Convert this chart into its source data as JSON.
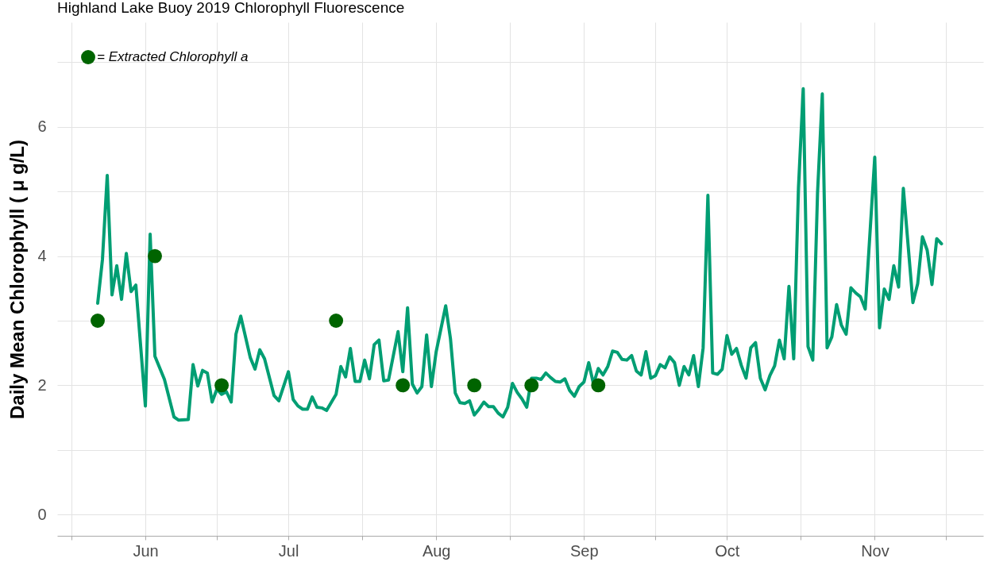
{
  "chart_data": {
    "type": "line",
    "title": "Highland Lake Buoy 2019 Chlorophyll Fluorescence",
    "ylabel": "Daily Mean Chlorophyll ( μ g/L)",
    "xlim": [
      "2019-05-13T12:00",
      "2019-11-23T18:00"
    ],
    "xticks": [
      {
        "value": "2019-05-16T12:00",
        "label": null
      },
      {
        "value": "2019-06-01",
        "label": "Jun"
      },
      {
        "value": "2019-06-16",
        "label": null
      },
      {
        "value": "2019-07-01",
        "label": "Jul"
      },
      {
        "value": "2019-07-16T12:00",
        "label": null
      },
      {
        "value": "2019-08-01",
        "label": "Aug"
      },
      {
        "value": "2019-08-16T12:00",
        "label": null
      },
      {
        "value": "2019-09-01",
        "label": "Sep"
      },
      {
        "value": "2019-09-16",
        "label": null
      },
      {
        "value": "2019-10-01",
        "label": "Oct"
      },
      {
        "value": "2019-10-16T12:00",
        "label": null
      },
      {
        "value": "2019-11-01",
        "label": "Nov"
      },
      {
        "value": "2019-11-16",
        "label": null
      }
    ],
    "ylim": [
      -0.33,
      7.62
    ],
    "yticks": [
      0,
      {
        "value": 1,
        "label": null
      },
      2,
      {
        "value": 3,
        "label": null
      },
      4,
      {
        "value": 5,
        "label": null
      },
      6,
      {
        "value": 7,
        "label": null
      }
    ],
    "grid": true,
    "legend": "top left",
    "series": [
      {
        "color": "#009e73",
        "x": [
          "2019-05-22",
          "2019-05-23",
          "2019-05-24",
          "2019-05-25",
          "2019-05-26",
          "2019-05-27",
          "2019-05-28",
          "2019-05-29",
          "2019-05-30",
          "2019-06-01",
          "2019-06-02",
          "2019-06-03",
          "2019-06-05",
          "2019-06-07",
          "2019-06-08",
          "2019-06-10",
          "2019-06-11",
          "2019-06-12",
          "2019-06-13",
          "2019-06-14",
          "2019-06-15",
          "2019-06-16",
          "2019-06-17",
          "2019-06-18",
          "2019-06-19",
          "2019-06-20",
          "2019-06-21",
          "2019-06-23",
          "2019-06-24",
          "2019-06-25",
          "2019-06-26",
          "2019-06-28",
          "2019-06-29",
          "2019-07-01",
          "2019-07-02",
          "2019-07-03",
          "2019-07-04",
          "2019-07-05",
          "2019-07-06",
          "2019-07-07",
          "2019-07-08",
          "2019-07-09",
          "2019-07-11",
          "2019-07-12",
          "2019-07-13",
          "2019-07-14",
          "2019-07-15",
          "2019-07-16",
          "2019-07-17",
          "2019-07-18",
          "2019-07-19",
          "2019-07-20",
          "2019-07-21",
          "2019-07-22",
          "2019-07-24",
          "2019-07-25",
          "2019-07-26",
          "2019-07-27",
          "2019-07-28",
          "2019-07-29",
          "2019-07-30",
          "2019-07-31",
          "2019-08-01",
          "2019-08-03",
          "2019-08-04",
          "2019-08-05",
          "2019-08-06",
          "2019-08-07",
          "2019-08-08",
          "2019-08-09",
          "2019-08-10",
          "2019-08-11",
          "2019-08-12",
          "2019-08-13",
          "2019-08-14",
          "2019-08-15",
          "2019-08-16",
          "2019-08-17",
          "2019-08-18",
          "2019-08-19",
          "2019-08-20",
          "2019-08-21",
          "2019-08-22",
          "2019-08-23",
          "2019-08-24",
          "2019-08-25",
          "2019-08-26",
          "2019-08-27",
          "2019-08-28",
          "2019-08-29",
          "2019-08-30",
          "2019-08-31",
          "2019-09-01",
          "2019-09-02",
          "2019-09-03",
          "2019-09-04",
          "2019-09-05",
          "2019-09-06",
          "2019-09-07",
          "2019-09-08",
          "2019-09-09",
          "2019-09-10",
          "2019-09-11",
          "2019-09-12",
          "2019-09-13",
          "2019-09-14",
          "2019-09-15",
          "2019-09-16",
          "2019-09-17",
          "2019-09-18",
          "2019-09-19",
          "2019-09-20",
          "2019-09-21",
          "2019-09-22",
          "2019-09-23",
          "2019-09-24",
          "2019-09-25",
          "2019-09-26",
          "2019-09-27",
          "2019-09-28",
          "2019-09-29",
          "2019-09-30",
          "2019-10-01",
          "2019-10-02",
          "2019-10-03",
          "2019-10-04",
          "2019-10-05",
          "2019-10-06",
          "2019-10-07",
          "2019-10-08",
          "2019-10-09",
          "2019-10-10",
          "2019-10-11",
          "2019-10-12",
          "2019-10-13",
          "2019-10-14",
          "2019-10-15",
          "2019-10-16",
          "2019-10-17",
          "2019-10-18",
          "2019-10-19",
          "2019-10-20",
          "2019-10-21",
          "2019-10-22",
          "2019-10-23",
          "2019-10-24",
          "2019-10-25",
          "2019-10-26",
          "2019-10-27",
          "2019-10-28",
          "2019-10-29",
          "2019-10-30",
          "2019-11-01",
          "2019-11-02",
          "2019-11-03",
          "2019-11-04",
          "2019-11-05",
          "2019-11-06",
          "2019-11-07",
          "2019-11-09",
          "2019-11-10",
          "2019-11-11",
          "2019-11-12",
          "2019-11-13",
          "2019-11-14",
          "2019-11-15"
        ],
        "values": [
          3.27,
          3.95,
          5.25,
          3.4,
          3.85,
          3.33,
          4.04,
          3.45,
          3.55,
          1.68,
          4.34,
          2.45,
          2.09,
          1.51,
          1.46,
          1.47,
          2.32,
          1.99,
          2.23,
          2.19,
          1.74,
          1.94,
          1.86,
          1.9,
          1.74,
          2.79,
          3.07,
          2.43,
          2.25,
          2.55,
          2.41,
          1.84,
          1.76,
          2.21,
          1.78,
          1.68,
          1.63,
          1.63,
          1.82,
          1.66,
          1.65,
          1.61,
          1.86,
          2.29,
          2.13,
          2.57,
          2.06,
          2.06,
          2.39,
          2.1,
          2.63,
          2.7,
          2.07,
          2.08,
          2.83,
          2.21,
          3.2,
          2.02,
          1.88,
          1.98,
          2.78,
          1.98,
          2.52,
          3.23,
          2.72,
          1.88,
          1.73,
          1.72,
          1.76,
          1.54,
          1.63,
          1.74,
          1.67,
          1.67,
          1.57,
          1.51,
          1.66,
          2.03,
          1.89,
          1.79,
          1.66,
          2.11,
          2.11,
          2.09,
          2.19,
          2.12,
          2.06,
          2.05,
          2.1,
          1.92,
          1.83,
          1.98,
          2.05,
          2.35,
          2.02,
          2.26,
          2.16,
          2.29,
          2.53,
          2.51,
          2.4,
          2.39,
          2.46,
          2.22,
          2.16,
          2.52,
          2.11,
          2.15,
          2.32,
          2.27,
          2.44,
          2.35,
          2.0,
          2.29,
          2.16,
          2.46,
          1.98,
          2.58,
          4.94,
          2.19,
          2.17,
          2.25,
          2.77,
          2.48,
          2.57,
          2.31,
          2.11,
          2.58,
          2.66,
          2.11,
          1.93,
          2.15,
          2.3,
          2.7,
          2.41,
          3.53,
          2.41,
          5.06,
          6.59,
          2.6,
          2.39,
          4.98,
          6.51,
          2.58,
          2.75,
          3.25,
          2.93,
          2.79,
          3.51,
          3.43,
          3.37,
          3.18,
          5.53,
          2.89,
          3.49,
          3.33,
          3.85,
          3.52,
          5.05,
          3.28,
          3.57,
          4.3,
          4.09,
          3.56,
          4.27,
          4.19
        ]
      },
      {
        "type": "scatter",
        "name": "= Extracted Chlorophyll a",
        "color": "#006400",
        "x": [
          "2019-05-22",
          "2019-06-03",
          "2019-06-17",
          "2019-07-11",
          "2019-07-25",
          "2019-08-09",
          "2019-08-21",
          "2019-09-04"
        ],
        "values": [
          3,
          4,
          2,
          3,
          2,
          2,
          2,
          2
        ]
      }
    ]
  }
}
